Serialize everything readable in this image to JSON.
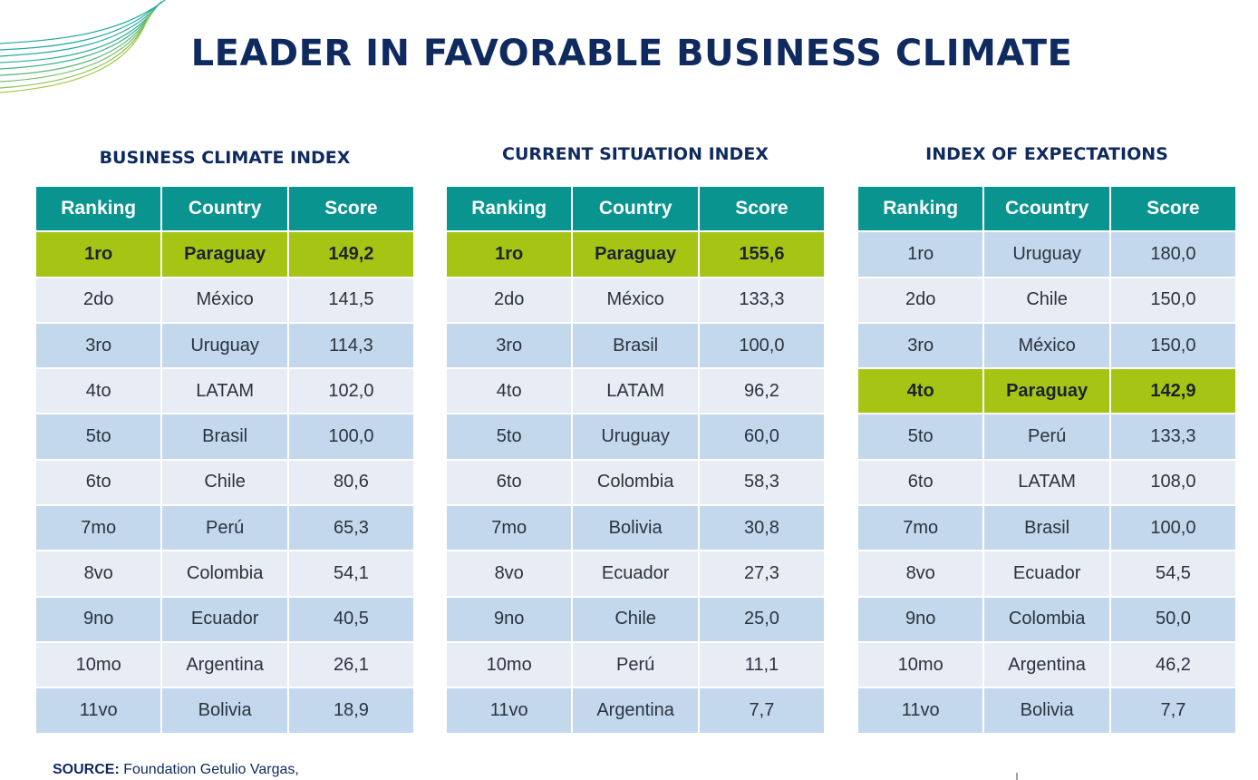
{
  "title": "LEADER IN FAVORABLE BUSINESS CLIMATE",
  "colors": {
    "header_teal": "#0a9490",
    "highlight_green": "#a6c414",
    "row_blue": "#c3d8ec",
    "row_light": "#e7ecf5",
    "title_navy": "#0f2a5f"
  },
  "tables": [
    {
      "title": "BUSINESS CLIMATE INDEX",
      "headers": [
        "Ranking",
        "Country",
        "Score"
      ],
      "rows": [
        {
          "rank": "1ro",
          "country": "Paraguay",
          "score": "149,2",
          "highlight": true
        },
        {
          "rank": "2do",
          "country": "México",
          "score": "141,5",
          "highlight": false
        },
        {
          "rank": "3ro",
          "country": "Uruguay",
          "score": "114,3",
          "highlight": false
        },
        {
          "rank": "4to",
          "country": "LATAM",
          "score": "102,0",
          "highlight": false
        },
        {
          "rank": "5to",
          "country": "Brasil",
          "score": "100,0",
          "highlight": false
        },
        {
          "rank": "6to",
          "country": "Chile",
          "score": "80,6",
          "highlight": false
        },
        {
          "rank": "7mo",
          "country": "Perú",
          "score": "65,3",
          "highlight": false
        },
        {
          "rank": "8vo",
          "country": "Colombia",
          "score": "54,1",
          "highlight": false
        },
        {
          "rank": "9no",
          "country": "Ecuador",
          "score": "40,5",
          "highlight": false
        },
        {
          "rank": "10mo",
          "country": "Argentina",
          "score": "26,1",
          "highlight": false
        },
        {
          "rank": "11vo",
          "country": "Bolivia",
          "score": "18,9",
          "highlight": false
        }
      ]
    },
    {
      "title": "CURRENT SITUATION INDEX",
      "headers": [
        "Ranking",
        "Country",
        "Score"
      ],
      "rows": [
        {
          "rank": "1ro",
          "country": "Paraguay",
          "score": "155,6",
          "highlight": true
        },
        {
          "rank": "2do",
          "country": "México",
          "score": "133,3",
          "highlight": false
        },
        {
          "rank": "3ro",
          "country": "Brasil",
          "score": "100,0",
          "highlight": false
        },
        {
          "rank": "4to",
          "country": "LATAM",
          "score": "96,2",
          "highlight": false
        },
        {
          "rank": "5to",
          "country": "Uruguay",
          "score": "60,0",
          "highlight": false
        },
        {
          "rank": "6to",
          "country": "Colombia",
          "score": "58,3",
          "highlight": false
        },
        {
          "rank": "7mo",
          "country": "Bolivia",
          "score": "30,8",
          "highlight": false
        },
        {
          "rank": "8vo",
          "country": "Ecuador",
          "score": "27,3",
          "highlight": false
        },
        {
          "rank": "9no",
          "country": "Chile",
          "score": "25,0",
          "highlight": false
        },
        {
          "rank": "10mo",
          "country": "Perú",
          "score": "11,1",
          "highlight": false
        },
        {
          "rank": "11vo",
          "country": "Argentina",
          "score": "7,7",
          "highlight": false
        }
      ]
    },
    {
      "title": "INDEX OF EXPECTATIONS",
      "headers": [
        "Ranking",
        "Ccountry",
        "Score"
      ],
      "rows": [
        {
          "rank": "1ro",
          "country": "Uruguay",
          "score": "180,0",
          "highlight": false
        },
        {
          "rank": "2do",
          "country": "Chile",
          "score": "150,0",
          "highlight": false
        },
        {
          "rank": "3ro",
          "country": "México",
          "score": "150,0",
          "highlight": false
        },
        {
          "rank": "4to",
          "country": "Paraguay",
          "score": "142,9",
          "highlight": true
        },
        {
          "rank": "5to",
          "country": "Perú",
          "score": "133,3",
          "highlight": false
        },
        {
          "rank": "6to",
          "country": "LATAM",
          "score": "108,0",
          "highlight": false
        },
        {
          "rank": "7mo",
          "country": "Brasil",
          "score": "100,0",
          "highlight": false
        },
        {
          "rank": "8vo",
          "country": "Ecuador",
          "score": "54,5",
          "highlight": false
        },
        {
          "rank": "9no",
          "country": "Colombia",
          "score": "50,0",
          "highlight": false
        },
        {
          "rank": "10mo",
          "country": "Argentina",
          "score": "46,2",
          "highlight": false
        },
        {
          "rank": "11vo",
          "country": "Bolivia",
          "score": "7,7",
          "highlight": false
        }
      ]
    }
  ],
  "source": {
    "label": "SOURCE:",
    "text": "Foundation Getulio Vargas,"
  }
}
